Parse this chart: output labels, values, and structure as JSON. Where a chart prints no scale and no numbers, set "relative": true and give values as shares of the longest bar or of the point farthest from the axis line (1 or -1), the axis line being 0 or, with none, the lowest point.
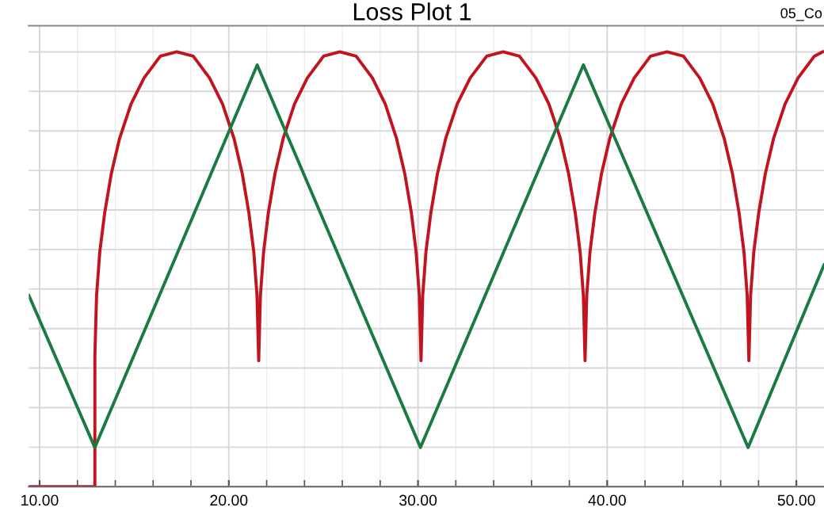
{
  "chart_data": {
    "type": "line",
    "title": "Loss Plot 1",
    "annotations": [
      "05_Co"
    ],
    "relative": true,
    "grid": true,
    "marker": "none",
    "line_style": "solid",
    "xlim": [
      9.43,
      51.46
    ],
    "xticks": [
      {
        "value": 10,
        "label": "10.00"
      },
      {
        "value": 20,
        "label": "20.00"
      },
      {
        "value": 30,
        "label": "30.00"
      },
      {
        "value": 40,
        "label": "40.00"
      },
      {
        "value": 50,
        "label": "50.00"
      }
    ],
    "series": [
      {
        "color": "#c0141e",
        "x": [
          9.43,
          12.92,
          12.92,
          13.01,
          13.18,
          13.44,
          13.79,
          14.22,
          14.83,
          15.52,
          16.38,
          17.25,
          18.12,
          18.98,
          19.67,
          20.28,
          20.71,
          21.06,
          21.32,
          21.49,
          21.58,
          21.67,
          21.84,
          22.09,
          22.44,
          22.87,
          23.47,
          24.15,
          25.01,
          25.87,
          26.73,
          27.59,
          28.27,
          28.87,
          29.3,
          29.65,
          29.9,
          30.07,
          30.16,
          30.25,
          30.42,
          30.68,
          31.03,
          31.46,
          32.07,
          32.76,
          33.63,
          34.5,
          35.36,
          36.23,
          36.92,
          37.53,
          37.96,
          38.31,
          38.57,
          38.74,
          38.83,
          38.92,
          39.09,
          39.35,
          39.7,
          40.13,
          40.74,
          41.43,
          42.29,
          43.16,
          44.03,
          44.89,
          45.58,
          46.19,
          46.62,
          46.97,
          47.23,
          47.4,
          47.49,
          47.58,
          47.75,
          48.01,
          48.36,
          48.79,
          49.4,
          50.09,
          50.95,
          51.39
        ],
        "values": [
          0,
          0,
          0.3,
          0.44,
          0.54,
          0.63,
          0.72,
          0.8,
          0.88,
          0.94,
          0.99,
          1.0,
          0.99,
          0.94,
          0.88,
          0.8,
          0.72,
          0.63,
          0.54,
          0.44,
          0.29,
          0.44,
          0.54,
          0.63,
          0.72,
          0.8,
          0.88,
          0.94,
          0.99,
          1.0,
          0.99,
          0.94,
          0.88,
          0.8,
          0.72,
          0.63,
          0.54,
          0.44,
          0.29,
          0.44,
          0.54,
          0.63,
          0.72,
          0.8,
          0.88,
          0.94,
          0.99,
          1.0,
          0.99,
          0.94,
          0.88,
          0.8,
          0.72,
          0.63,
          0.54,
          0.44,
          0.29,
          0.44,
          0.54,
          0.63,
          0.72,
          0.8,
          0.88,
          0.94,
          0.99,
          1.0,
          0.99,
          0.94,
          0.88,
          0.8,
          0.72,
          0.63,
          0.54,
          0.44,
          0.29,
          0.44,
          0.54,
          0.63,
          0.72,
          0.8,
          0.88,
          0.94,
          0.99,
          1.0
        ]
      },
      {
        "color": "#1a7a40",
        "x": [
          9.43,
          12.92,
          21.5,
          30.13,
          38.74,
          47.45,
          51.46
        ],
        "values": [
          0.44,
          0.09,
          0.97,
          0.09,
          0.97,
          0.09,
          0.51
        ]
      }
    ]
  }
}
